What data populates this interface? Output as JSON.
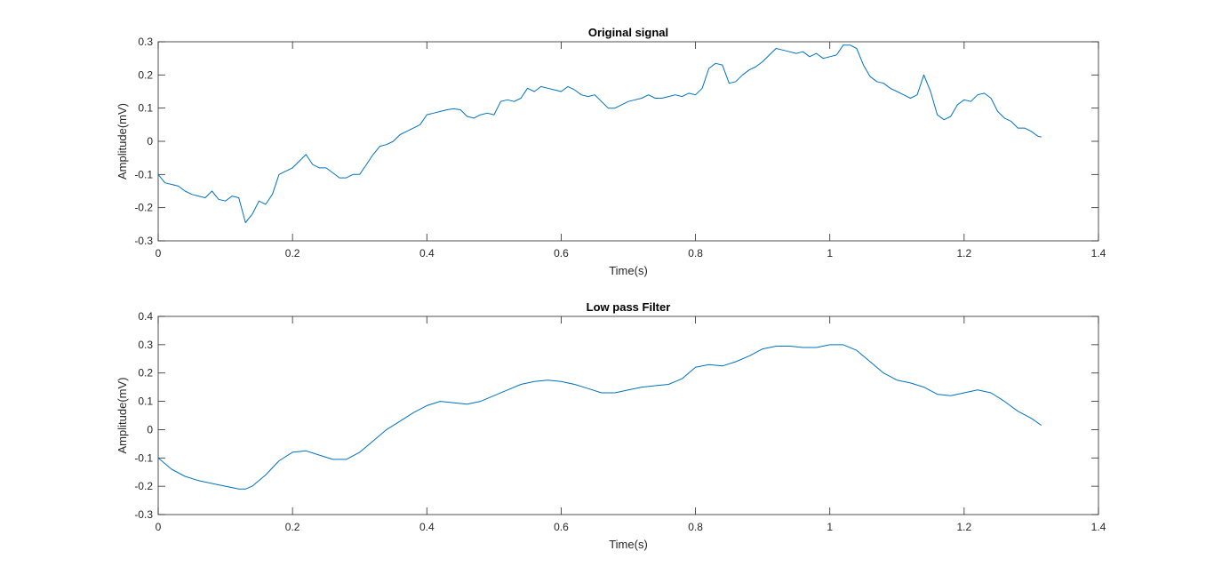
{
  "chart_data": [
    {
      "type": "line",
      "title": "Original signal",
      "xlabel": "Time(s)",
      "ylabel": "Amplitude(mV)",
      "xlim": [
        0,
        1.4
      ],
      "ylim": [
        -0.3,
        0.3
      ],
      "xticks": [
        0,
        0.2,
        0.4,
        0.6,
        0.8,
        1,
        1.2,
        1.4
      ],
      "yticks": [
        -0.3,
        -0.2,
        -0.1,
        0,
        0.1,
        0.2,
        0.3
      ],
      "grid": false,
      "color": "#0072BD",
      "series": [
        {
          "x": [
            0,
            0.01,
            0.02,
            0.03,
            0.04,
            0.05,
            0.06,
            0.07,
            0.08,
            0.09,
            0.1,
            0.11,
            0.12,
            0.13,
            0.14,
            0.15,
            0.16,
            0.17,
            0.18,
            0.19,
            0.2,
            0.21,
            0.22,
            0.23,
            0.24,
            0.25,
            0.26,
            0.27,
            0.28,
            0.29,
            0.3,
            0.31,
            0.32,
            0.33,
            0.34,
            0.35,
            0.36,
            0.37,
            0.38,
            0.39,
            0.4,
            0.41,
            0.42,
            0.43,
            0.44,
            0.45,
            0.46,
            0.47,
            0.48,
            0.49,
            0.5,
            0.51,
            0.52,
            0.53,
            0.54,
            0.55,
            0.56,
            0.57,
            0.58,
            0.59,
            0.6,
            0.61,
            0.62,
            0.63,
            0.64,
            0.65,
            0.66,
            0.67,
            0.68,
            0.69,
            0.7,
            0.71,
            0.72,
            0.73,
            0.74,
            0.75,
            0.76,
            0.77,
            0.78,
            0.79,
            0.8,
            0.81,
            0.82,
            0.83,
            0.84,
            0.85,
            0.86,
            0.87,
            0.88,
            0.89,
            0.9,
            0.91,
            0.92,
            0.93,
            0.94,
            0.95,
            0.96,
            0.97,
            0.98,
            0.99,
            1.0,
            1.01,
            1.02,
            1.03,
            1.04,
            1.05,
            1.06,
            1.07,
            1.08,
            1.09,
            1.1,
            1.11,
            1.12,
            1.13,
            1.14,
            1.15,
            1.16,
            1.17,
            1.18,
            1.19,
            1.2,
            1.21,
            1.22,
            1.23,
            1.24,
            1.25,
            1.26,
            1.27,
            1.28,
            1.29,
            1.3,
            1.31,
            1.315
          ],
          "y": [
            -0.1,
            -0.125,
            -0.13,
            -0.135,
            -0.15,
            -0.16,
            -0.165,
            -0.17,
            -0.15,
            -0.175,
            -0.18,
            -0.165,
            -0.17,
            -0.245,
            -0.22,
            -0.18,
            -0.19,
            -0.16,
            -0.1,
            -0.09,
            -0.08,
            -0.06,
            -0.04,
            -0.07,
            -0.08,
            -0.08,
            -0.095,
            -0.11,
            -0.11,
            -0.1,
            -0.1,
            -0.07,
            -0.04,
            -0.015,
            -0.01,
            0.0,
            0.02,
            0.03,
            0.04,
            0.05,
            0.08,
            0.085,
            0.09,
            0.095,
            0.098,
            0.095,
            0.075,
            0.07,
            0.08,
            0.085,
            0.08,
            0.12,
            0.125,
            0.12,
            0.13,
            0.16,
            0.15,
            0.165,
            0.16,
            0.155,
            0.15,
            0.165,
            0.155,
            0.14,
            0.135,
            0.14,
            0.12,
            0.1,
            0.1,
            0.11,
            0.12,
            0.125,
            0.13,
            0.14,
            0.13,
            0.13,
            0.135,
            0.14,
            0.135,
            0.145,
            0.14,
            0.16,
            0.22,
            0.235,
            0.23,
            0.175,
            0.18,
            0.2,
            0.215,
            0.225,
            0.24,
            0.26,
            0.28,
            0.275,
            0.27,
            0.265,
            0.27,
            0.255,
            0.265,
            0.25,
            0.255,
            0.26,
            0.29,
            0.29,
            0.28,
            0.23,
            0.195,
            0.18,
            0.175,
            0.16,
            0.15,
            0.14,
            0.13,
            0.14,
            0.2,
            0.15,
            0.08,
            0.065,
            0.075,
            0.11,
            0.125,
            0.12,
            0.14,
            0.145,
            0.13,
            0.09,
            0.07,
            0.06,
            0.04,
            0.04,
            0.03,
            0.015,
            0.013
          ]
        }
      ]
    },
    {
      "type": "line",
      "title": "Low pass Filter",
      "xlabel": "Time(s)",
      "ylabel": "Amplitude(mV)",
      "xlim": [
        0,
        1.4
      ],
      "ylim": [
        -0.3,
        0.4
      ],
      "xticks": [
        0,
        0.2,
        0.4,
        0.6,
        0.8,
        1,
        1.2,
        1.4
      ],
      "yticks": [
        -0.3,
        -0.2,
        -0.1,
        0,
        0.1,
        0.2,
        0.3,
        0.4
      ],
      "grid": false,
      "color": "#0072BD",
      "series": [
        {
          "x": [
            0,
            0.02,
            0.04,
            0.06,
            0.08,
            0.1,
            0.12,
            0.13,
            0.14,
            0.16,
            0.18,
            0.2,
            0.22,
            0.24,
            0.26,
            0.28,
            0.3,
            0.32,
            0.34,
            0.36,
            0.38,
            0.4,
            0.42,
            0.44,
            0.46,
            0.48,
            0.5,
            0.52,
            0.54,
            0.56,
            0.58,
            0.6,
            0.62,
            0.64,
            0.66,
            0.68,
            0.7,
            0.72,
            0.74,
            0.76,
            0.78,
            0.8,
            0.82,
            0.84,
            0.86,
            0.88,
            0.9,
            0.92,
            0.94,
            0.96,
            0.98,
            1.0,
            1.02,
            1.04,
            1.06,
            1.08,
            1.1,
            1.12,
            1.14,
            1.16,
            1.18,
            1.2,
            1.22,
            1.24,
            1.26,
            1.28,
            1.3,
            1.315
          ],
          "y": [
            -0.1,
            -0.14,
            -0.165,
            -0.18,
            -0.19,
            -0.2,
            -0.21,
            -0.21,
            -0.2,
            -0.16,
            -0.11,
            -0.08,
            -0.075,
            -0.09,
            -0.105,
            -0.105,
            -0.08,
            -0.04,
            0.0,
            0.03,
            0.06,
            0.085,
            0.1,
            0.095,
            0.09,
            0.1,
            0.12,
            0.14,
            0.16,
            0.17,
            0.175,
            0.17,
            0.16,
            0.145,
            0.13,
            0.13,
            0.14,
            0.15,
            0.155,
            0.16,
            0.18,
            0.22,
            0.23,
            0.225,
            0.24,
            0.26,
            0.285,
            0.295,
            0.295,
            0.29,
            0.29,
            0.3,
            0.3,
            0.28,
            0.24,
            0.2,
            0.175,
            0.165,
            0.15,
            0.125,
            0.12,
            0.13,
            0.14,
            0.13,
            0.1,
            0.065,
            0.04,
            0.015
          ]
        }
      ]
    }
  ]
}
